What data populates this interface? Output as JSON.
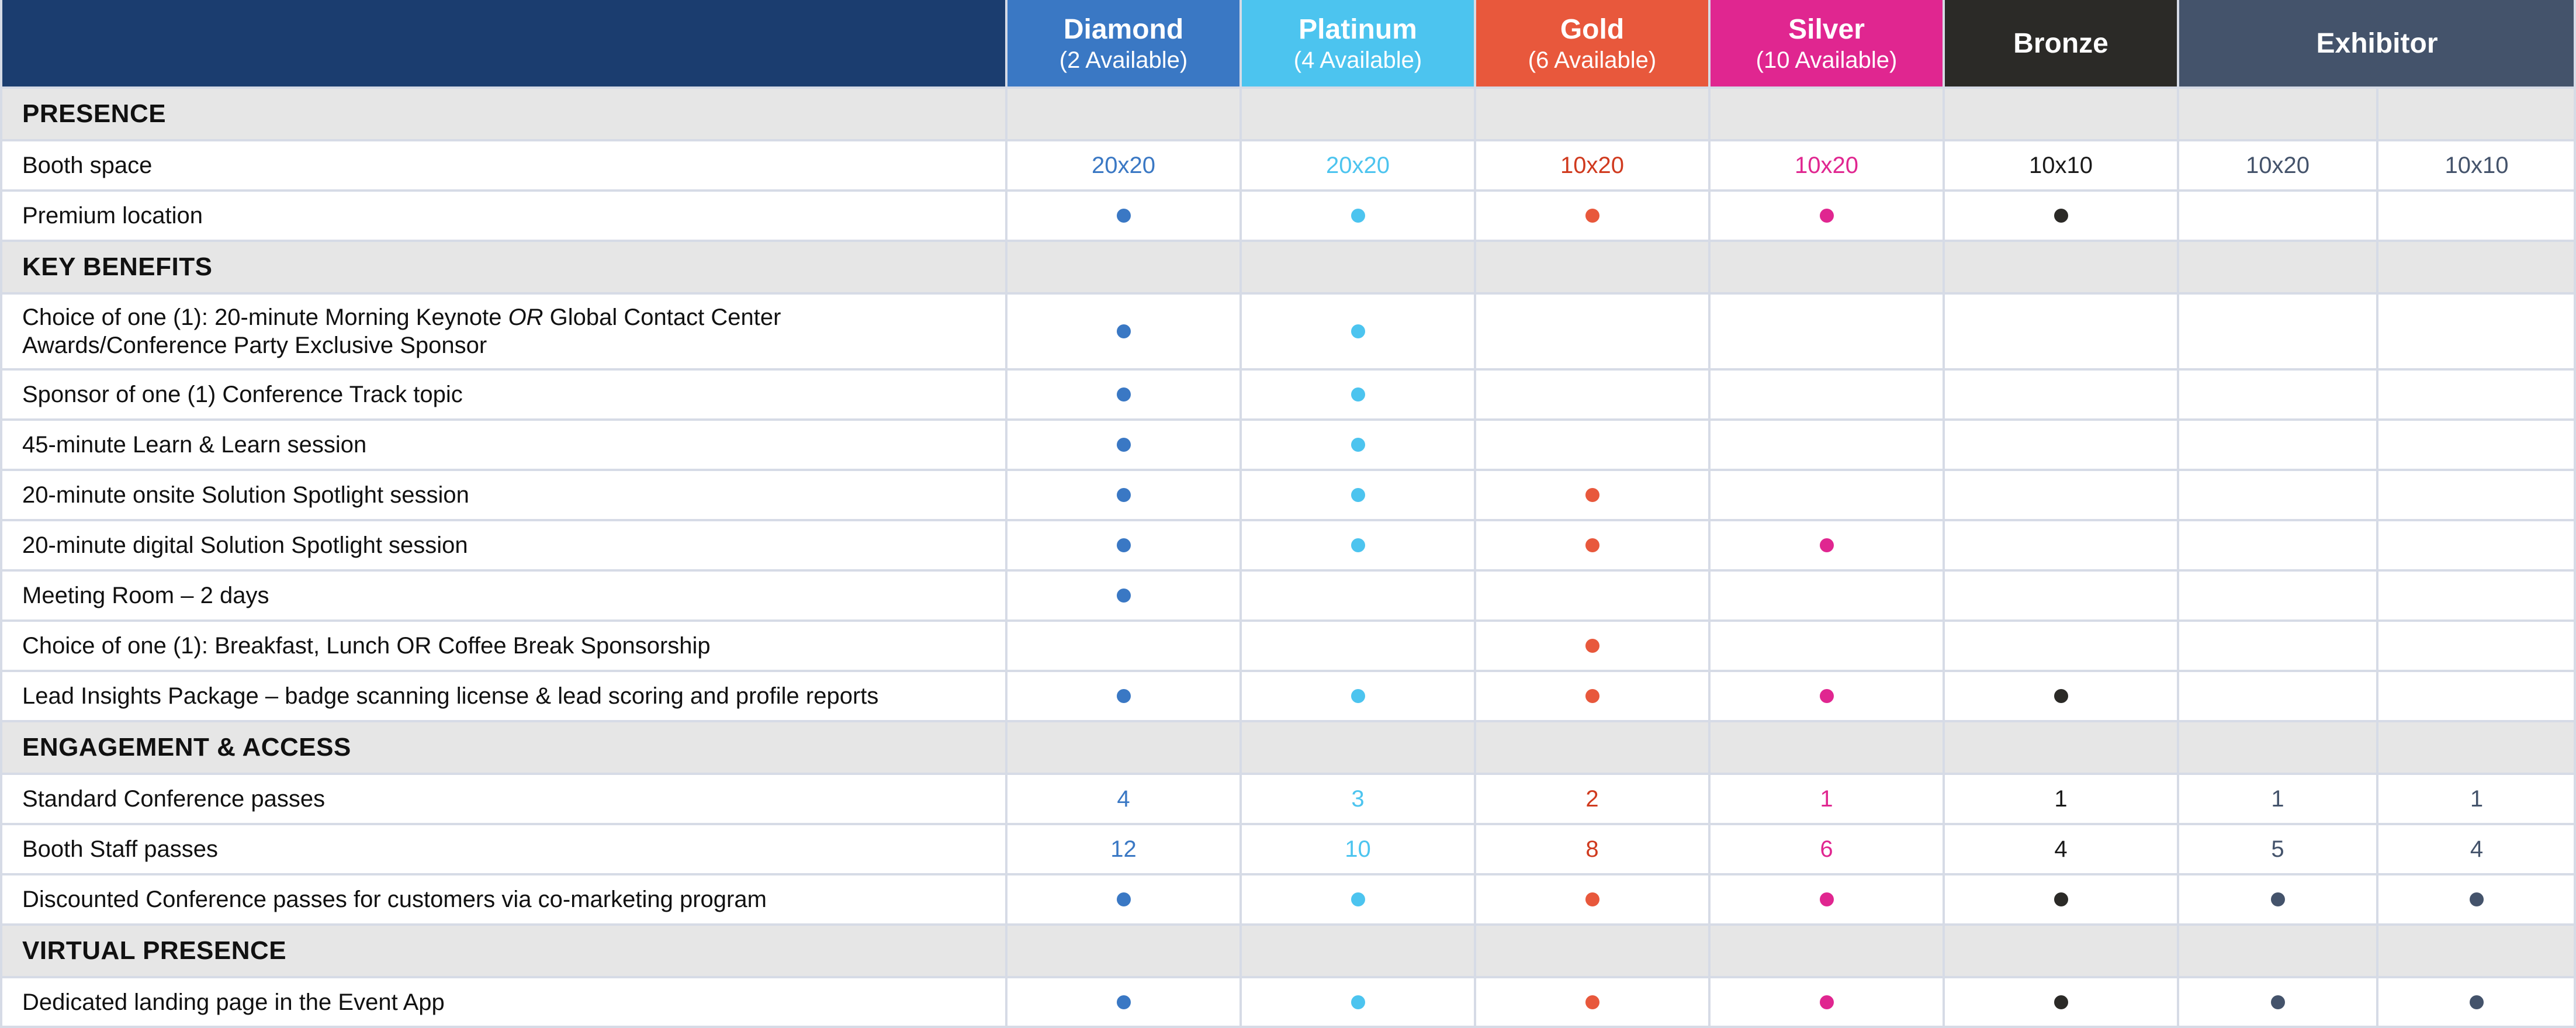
{
  "colors": {
    "header_bg": "#1b3d6f",
    "section_bg": "#e6e6e6",
    "border": "#d6dbe6",
    "diamond": "#3a78c4",
    "platinum": "#4cc4ef",
    "gold": "#e8583c",
    "gold_text": "#d03a1e",
    "silver": "#e02690",
    "bronze": "#2b2a27",
    "bronze_text": "#1a1a1a",
    "exhibitor": "#44536b"
  },
  "tiers": [
    {
      "name": "Diamond",
      "avail": "(2 Available)",
      "color_key": "diamond",
      "text_key": "diamond"
    },
    {
      "name": "Platinum",
      "avail": "(4 Available)",
      "color_key": "platinum",
      "text_key": "platinum"
    },
    {
      "name": "Gold",
      "avail": "(6 Available)",
      "color_key": "gold",
      "text_key": "gold_text"
    },
    {
      "name": "Silver",
      "avail": "(10 Available)",
      "color_key": "silver",
      "text_key": "silver"
    },
    {
      "name": "Bronze",
      "avail": "",
      "color_key": "bronze",
      "text_key": "bronze_text"
    },
    {
      "name": "Exhibitor",
      "avail": "",
      "color_key": "exhibitor",
      "text_key": "exhibitor"
    }
  ],
  "rows": [
    {
      "type": "section",
      "label": "PRESENCE"
    },
    {
      "type": "row",
      "label": "Booth space",
      "cells": [
        "20x20",
        "20x20",
        "10x20",
        "10x20",
        "10x10",
        "10x20",
        "10x10"
      ]
    },
    {
      "type": "row",
      "label": "Premium location",
      "cells": [
        "dot",
        "dot",
        "dot",
        "dot",
        "dot",
        "",
        ""
      ]
    },
    {
      "type": "section",
      "label": "KEY BENEFITS"
    },
    {
      "type": "row",
      "tall": true,
      "label": "Choice of one (1): 20-minute Morning Keynote ",
      "label_em": "OR",
      "label_after": " Global Contact Center Awards/Conference Party Exclusive Sponsor",
      "cells": [
        "dot",
        "dot",
        "",
        "",
        "",
        "",
        ""
      ]
    },
    {
      "type": "row",
      "label": "Sponsor of one (1) Conference Track topic",
      "cells": [
        "dot",
        "dot",
        "",
        "",
        "",
        "",
        ""
      ]
    },
    {
      "type": "row",
      "label": "45-minute Learn & Learn session",
      "cells": [
        "dot",
        "dot",
        "",
        "",
        "",
        "",
        ""
      ]
    },
    {
      "type": "row",
      "label": "20-minute onsite Solution Spotlight session",
      "cells": [
        "dot",
        "dot",
        "dot",
        "",
        "",
        "",
        ""
      ]
    },
    {
      "type": "row",
      "label": "20-minute digital Solution Spotlight session",
      "cells": [
        "dot",
        "dot",
        "dot",
        "dot",
        "",
        "",
        ""
      ]
    },
    {
      "type": "row",
      "label": "Meeting Room – 2 days",
      "cells": [
        "dot",
        "",
        "",
        "",
        "",
        "",
        ""
      ]
    },
    {
      "type": "row",
      "label": "Choice of one (1): Breakfast, Lunch OR Coffee Break Sponsorship",
      "cells": [
        "",
        "",
        "dot",
        "",
        "",
        "",
        ""
      ]
    },
    {
      "type": "row",
      "label": "Lead Insights Package – badge scanning license & lead scoring and profile reports",
      "cells": [
        "dot",
        "dot",
        "dot",
        "dot",
        "dot",
        "",
        ""
      ]
    },
    {
      "type": "section",
      "label": "ENGAGEMENT & ACCESS"
    },
    {
      "type": "row",
      "label": "Standard Conference passes",
      "cells": [
        "4",
        "3",
        "2",
        "1",
        "1",
        "1",
        "1"
      ]
    },
    {
      "type": "row",
      "label": "Booth Staff passes",
      "cells": [
        "12",
        "10",
        "8",
        "6",
        "4",
        "5",
        "4"
      ]
    },
    {
      "type": "row",
      "label": "Discounted Conference passes for customers via co-marketing program",
      "cells": [
        "dot",
        "dot",
        "dot",
        "dot",
        "dot",
        "dot",
        "dot"
      ]
    },
    {
      "type": "section",
      "label": "VIRTUAL PRESENCE"
    },
    {
      "type": "row",
      "label": "Dedicated landing page in the Event App",
      "cells": [
        "dot",
        "dot",
        "dot",
        "dot",
        "dot",
        "dot",
        "dot"
      ]
    }
  ]
}
